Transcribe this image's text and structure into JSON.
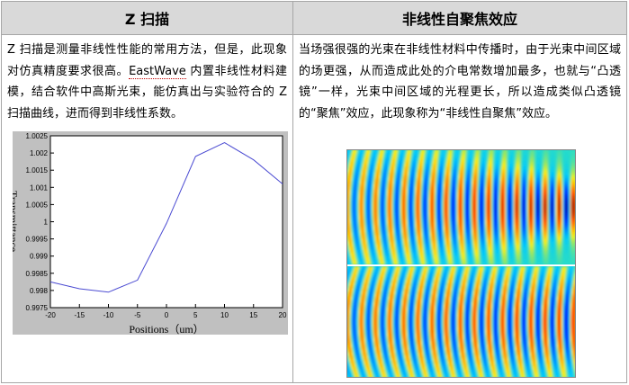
{
  "left": {
    "title": "Z 扫描",
    "text_part1": "Z 扫描是测量非线性性能的常用方法，但是，此现象对仿真精度要求很高。",
    "brand": "EastWave",
    "text_part2": " 内置非线性材料建模，结合软件中高斯光束，能仿真出与实验符合的 Z 扫描曲线，进而得到非线性系数。"
  },
  "right": {
    "title": "非线性自聚焦效应",
    "text": "当场强很强的光束在非线性材料中传播时，由于光束中间区域的场更强，从而造成此处的介电常数增加最多，也就与“凸透镜”一样，光束中间区域的光程更长，所以造成类似凸透镜的“聚焦”效应，此现象称为“非线性自聚焦”效应。"
  },
  "chart_data": {
    "type": "line",
    "title": "",
    "xlabel": "Positions（um）",
    "ylabel": "Transmittance",
    "xlim": [
      -20,
      20
    ],
    "ylim": [
      0.9975,
      1.0025
    ],
    "xticks": [
      -20,
      -15,
      -10,
      -5,
      0,
      5,
      10,
      15,
      20
    ],
    "yticks": [
      0.9975,
      0.998,
      0.9985,
      0.999,
      0.9995,
      1,
      1.0005,
      1.001,
      1.0015,
      1.002,
      1.0025
    ],
    "x": [
      -20,
      -15,
      -10,
      -5,
      0,
      5,
      10,
      15,
      20
    ],
    "y": [
      0.99825,
      0.99805,
      0.99795,
      0.9983,
      0.99995,
      1.0019,
      1.0023,
      1.0018,
      1.0011
    ],
    "line_color": "#4b4bd2",
    "grid": false
  },
  "field_image": {
    "panels": 2,
    "colormap": "jet"
  }
}
